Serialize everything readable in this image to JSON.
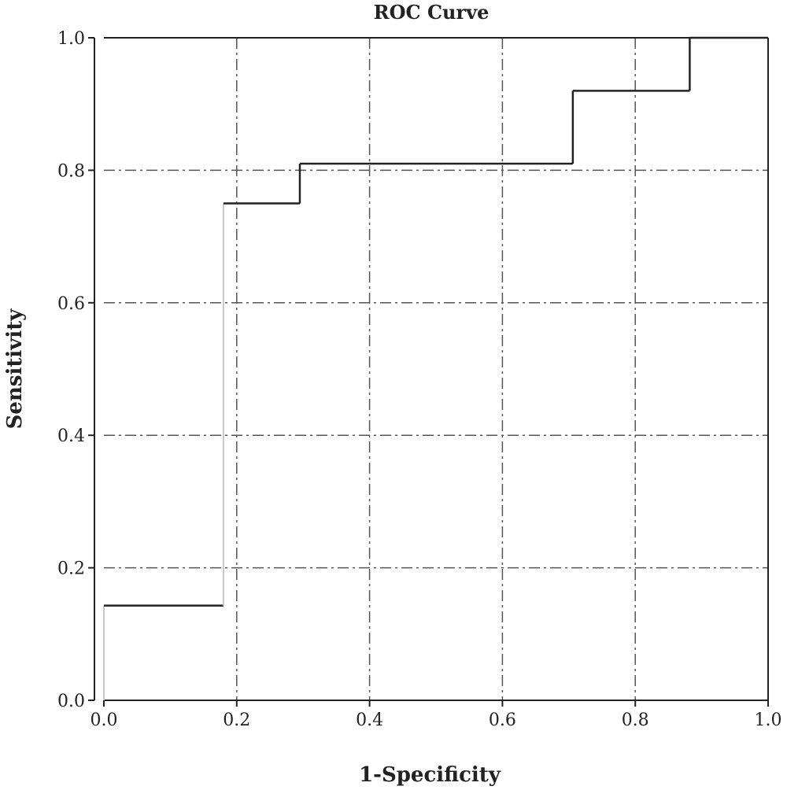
{
  "chart_data": {
    "type": "line",
    "title": "ROC Curve",
    "xlabel": "1-Specificity",
    "ylabel": "Sensitivity",
    "xlim": [
      0.0,
      1.0
    ],
    "ylim": [
      0.0,
      1.0
    ],
    "grid": true,
    "x_ticks": [
      "0.0",
      "0.2",
      "0.4",
      "0.6",
      "0.8",
      "1.0"
    ],
    "y_ticks": [
      "0.0",
      "0.2",
      "0.4",
      "0.6",
      "0.8",
      "1.0"
    ],
    "series": [
      {
        "x": [
          0.0,
          0.0,
          0.18,
          0.18,
          0.295,
          0.295,
          0.706,
          0.706,
          0.882,
          0.882,
          1.0
        ],
        "y": [
          0.0,
          0.143,
          0.143,
          0.75,
          0.75,
          0.81,
          0.81,
          0.92,
          0.92,
          1.0,
          1.0
        ]
      }
    ]
  }
}
